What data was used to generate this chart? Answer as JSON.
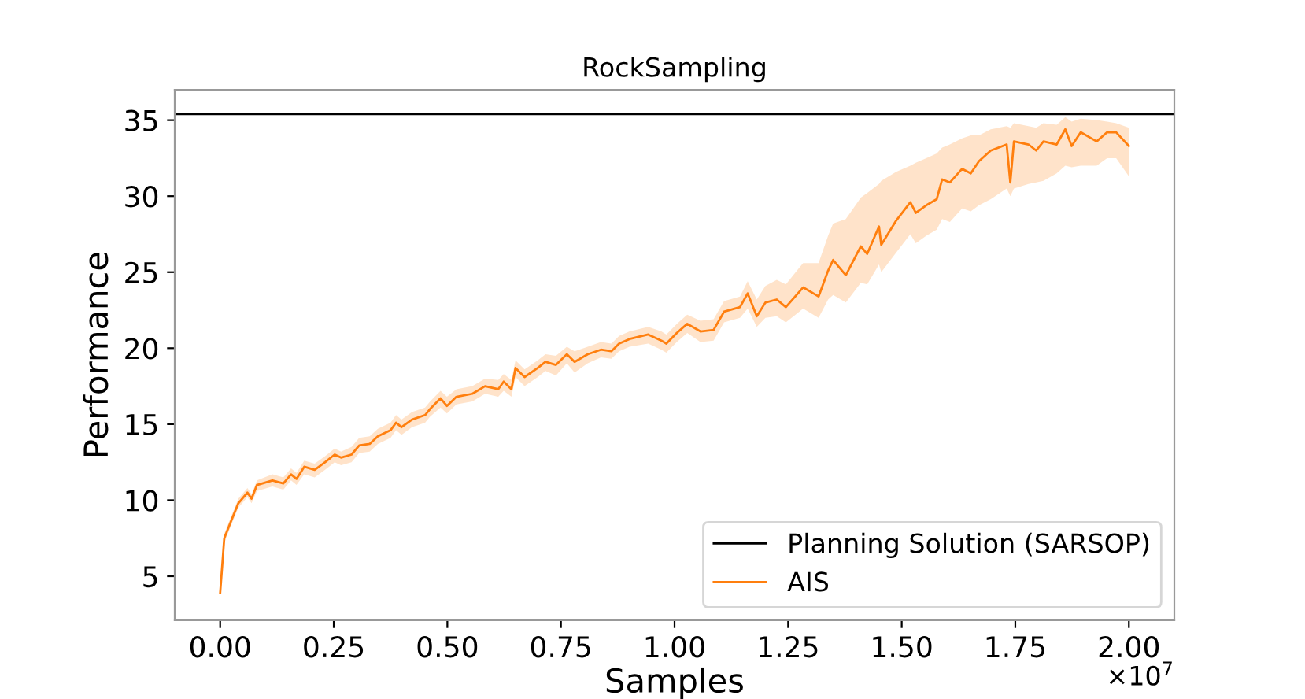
{
  "chart_data": {
    "type": "line",
    "title": "RockSampling",
    "xlabel": "Samples",
    "ylabel": "Performance",
    "xlim": [
      -0.1,
      2.1
    ],
    "ylim": [
      2.1,
      37
    ],
    "xticks": [
      {
        "value": 0,
        "label": "0.00"
      },
      0.25,
      {
        "value": 0.5,
        "label": "0.50"
      },
      0.75,
      {
        "value": 1,
        "label": "1.00"
      },
      1.25,
      {
        "value": 1.5,
        "label": "1.50"
      },
      1.75,
      {
        "value": 2,
        "label": "2.00"
      }
    ],
    "yticks": [
      5,
      10,
      15,
      20,
      25,
      30,
      35
    ],
    "annotations": [
      "×10$^{7}$"
    ],
    "grid": false,
    "legend": "bottom right",
    "line_style": "solid",
    "marker": "none",
    "ref_lines": [
      {
        "axis": "y",
        "value": 35.4,
        "label": "Planning Solution (SARSOP)",
        "color": "#000000"
      }
    ],
    "series": [
      {
        "name": "AIS",
        "color": "#ff7f0e",
        "x": [
          0,
          0.009,
          0.025,
          0.04,
          0.06,
          0.069,
          0.081,
          0.115,
          0.139,
          0.156,
          0.168,
          0.185,
          0.208,
          0.231,
          0.252,
          0.266,
          0.289,
          0.306,
          0.329,
          0.347,
          0.375,
          0.387,
          0.399,
          0.422,
          0.451,
          0.462,
          0.485,
          0.499,
          0.52,
          0.555,
          0.583,
          0.612,
          0.624,
          0.641,
          0.65,
          0.67,
          0.699,
          0.716,
          0.739,
          0.763,
          0.78,
          0.809,
          0.838,
          0.861,
          0.878,
          0.901,
          0.942,
          0.971,
          0.982,
          1.005,
          1.028,
          1.057,
          1.086,
          1.109,
          1.144,
          1.161,
          1.181,
          1.2,
          1.225,
          1.245,
          1.283,
          1.317,
          1.338,
          1.349,
          1.377,
          1.41,
          1.424,
          1.45,
          1.455,
          1.488,
          1.519,
          1.531,
          1.554,
          1.577,
          1.589,
          1.606,
          1.633,
          1.652,
          1.67,
          1.696,
          1.731,
          1.739,
          1.747,
          1.779,
          1.796,
          1.812,
          1.841,
          1.86,
          1.874,
          1.894,
          1.929,
          1.952,
          1.972,
          2.0
        ],
        "values": [
          3.9,
          7.5,
          8.7,
          9.8,
          10.5,
          10.1,
          11.0,
          11.3,
          11.1,
          11.7,
          11.4,
          12.2,
          12.0,
          12.5,
          13.0,
          12.8,
          13.0,
          13.6,
          13.7,
          14.2,
          14.6,
          15.1,
          14.8,
          15.3,
          15.6,
          16.0,
          16.7,
          16.2,
          16.8,
          17.0,
          17.5,
          17.3,
          17.8,
          17.3,
          18.7,
          18.1,
          18.7,
          19.1,
          18.9,
          19.6,
          19.1,
          19.6,
          19.9,
          19.8,
          20.3,
          20.6,
          20.9,
          20.5,
          20.3,
          21.0,
          21.6,
          21.1,
          21.2,
          22.4,
          22.7,
          23.6,
          22.1,
          23.0,
          23.2,
          22.7,
          24.0,
          23.4,
          25.1,
          25.8,
          24.8,
          26.7,
          26.2,
          28.0,
          26.8,
          28.4,
          29.6,
          28.9,
          29.4,
          29.8,
          31.1,
          30.9,
          31.8,
          31.5,
          32.3,
          33.0,
          33.4,
          30.9,
          33.6,
          33.4,
          33.0,
          33.6,
          33.4,
          34.4,
          33.3,
          34.2,
          33.6,
          34.2,
          34.2,
          33.3
        ],
        "lower": [
          3.7,
          7.2,
          8.4,
          9.5,
          10.2,
          9.8,
          10.6,
          10.9,
          10.7,
          11.3,
          11.0,
          11.7,
          11.5,
          12.0,
          12.5,
          12.3,
          12.5,
          13.1,
          13.2,
          13.7,
          14.1,
          14.6,
          14.3,
          14.8,
          15.1,
          15.5,
          16.1,
          15.7,
          16.3,
          16.5,
          17.0,
          16.8,
          17.2,
          16.8,
          18.1,
          17.5,
          18.1,
          18.5,
          18.2,
          19.0,
          18.4,
          19.0,
          19.4,
          19.3,
          19.8,
          20.1,
          20.3,
          19.9,
          19.7,
          20.4,
          21.0,
          20.4,
          20.5,
          21.7,
          22.0,
          22.6,
          21.4,
          22.0,
          22.1,
          21.7,
          22.6,
          22.0,
          23.2,
          23.5,
          23.0,
          24.3,
          24.2,
          25.5,
          25.0,
          26.3,
          27.5,
          26.9,
          27.4,
          27.8,
          28.5,
          28.3,
          29.2,
          29.0,
          29.4,
          29.8,
          30.5,
          30.0,
          30.5,
          30.8,
          30.9,
          31.0,
          31.5,
          32.0,
          31.9,
          32.0,
          32.0,
          32.5,
          32.5,
          31.3
        ],
        "upper": [
          4.1,
          7.8,
          9.0,
          10.1,
          10.8,
          10.4,
          11.3,
          11.7,
          11.5,
          12.1,
          11.8,
          12.6,
          12.4,
          12.9,
          13.4,
          13.2,
          13.5,
          14.1,
          14.2,
          14.7,
          15.1,
          15.6,
          15.3,
          15.8,
          16.1,
          16.5,
          17.2,
          16.8,
          17.3,
          17.5,
          18.0,
          17.9,
          18.3,
          17.9,
          19.2,
          18.6,
          19.2,
          19.6,
          19.5,
          20.1,
          19.8,
          20.1,
          20.4,
          20.3,
          20.8,
          21.1,
          21.4,
          21.1,
          20.9,
          21.6,
          22.2,
          21.8,
          21.9,
          23.1,
          23.4,
          24.4,
          23.2,
          24.1,
          24.5,
          24.2,
          25.6,
          25.6,
          27.4,
          28.2,
          28.5,
          29.9,
          30.2,
          30.8,
          31.0,
          31.6,
          32.0,
          32.2,
          32.5,
          32.8,
          33.2,
          33.4,
          33.8,
          34.0,
          34.0,
          34.4,
          34.6,
          34.5,
          34.8,
          34.6,
          34.5,
          34.8,
          34.7,
          35.2,
          34.9,
          35.1,
          35.0,
          34.9,
          34.8,
          34.5
        ]
      }
    ]
  }
}
